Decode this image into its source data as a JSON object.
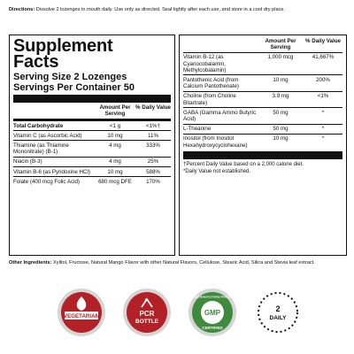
{
  "directions": {
    "label": "Directions:",
    "text": "Dissolve 2 lozenges in mouth daily. Use only as directed. Seal tightly after each use, and store in a cool dry place."
  },
  "left_panel": {
    "title_line1": "Supplement",
    "title_line2": "Facts",
    "serving_size": "Serving Size 2 Lozenges",
    "servings_per_container": "Servings Per Container 50",
    "col_amount": "Amount Per Serving",
    "col_dv": "% Daily Value",
    "rows": [
      {
        "name": "Total Carbohydrate",
        "amount": "<1 g",
        "dv": "<1%†",
        "bold": true
      },
      {
        "name": "Vitamin C (as Ascorbic Acid)",
        "amount": "10 mg",
        "dv": "11%"
      },
      {
        "name": "Thiamine (as Thiamine Mononitrate) (B-1)",
        "amount": "4 mg",
        "dv": "333%"
      },
      {
        "name": "Niacin (B-3)",
        "amount": "4 mg",
        "dv": "25%"
      },
      {
        "name": "Vitamin B-6 (as Pyridoxine HCl)",
        "amount": "10 mg",
        "dv": "588%"
      },
      {
        "name": "Folate (400 mcg Folic Acid)",
        "amount": "680 mcg DFE",
        "dv": "170%"
      }
    ]
  },
  "right_panel": {
    "col_amount": "Amount Per Serving",
    "col_dv": "% Daily Value",
    "rows": [
      {
        "name": "Vitamin B-12 (as Cyanocobalamin, Methylcobalamin)",
        "amount": "1,000 mcg",
        "dv": "41,667%"
      },
      {
        "name": "Pantothenic Acid (from Calcium Pantothenate)",
        "amount": "10 mg",
        "dv": "200%"
      },
      {
        "name": "Choline (from Choline Bitartrate)",
        "amount": "3.9 mg",
        "dv": "<1%"
      },
      {
        "name": "GABA (Gamma Amino Butyric Acid)",
        "amount": "50 mg",
        "dv": "*"
      },
      {
        "name": "L-Theanine",
        "amount": "50 mg",
        "dv": "*"
      },
      {
        "name": "Inositol (from Inositol Hexahydroxycyclohexane)",
        "amount": "10 mg",
        "dv": "*"
      }
    ],
    "footnote1": "†Percent Daily Value based on a 2,000 calorie diet.",
    "footnote2": "*Daily Value not established."
  },
  "other_ingredients": {
    "label": "Other Ingredients:",
    "text": "Xylitol, Fructose, Natural Mango Flavor with other Natural Flavors, Cellulose, Stearic Acid, Silica and Stevia leaf extract."
  },
  "badges": [
    {
      "name": "vegetarian",
      "text": "VEGETARIAN",
      "color": "#b32025"
    },
    {
      "name": "pcr-bottle",
      "line1": "PCR",
      "line2": "BOTTLE",
      "color": "#b32025"
    },
    {
      "name": "gmp",
      "text": "GMP",
      "ring_top": "GOOD MANUFACTURING PRACTICE",
      "ring_bottom": "CERTIFIED",
      "color": "#3f8a3c"
    },
    {
      "name": "daily",
      "line1": "2",
      "line2": "DAILY",
      "color": "#111111"
    }
  ],
  "colors": {
    "badge_ring": "#c9c9c9",
    "badge_red": "#b32025",
    "badge_green": "#3f8a3c"
  }
}
